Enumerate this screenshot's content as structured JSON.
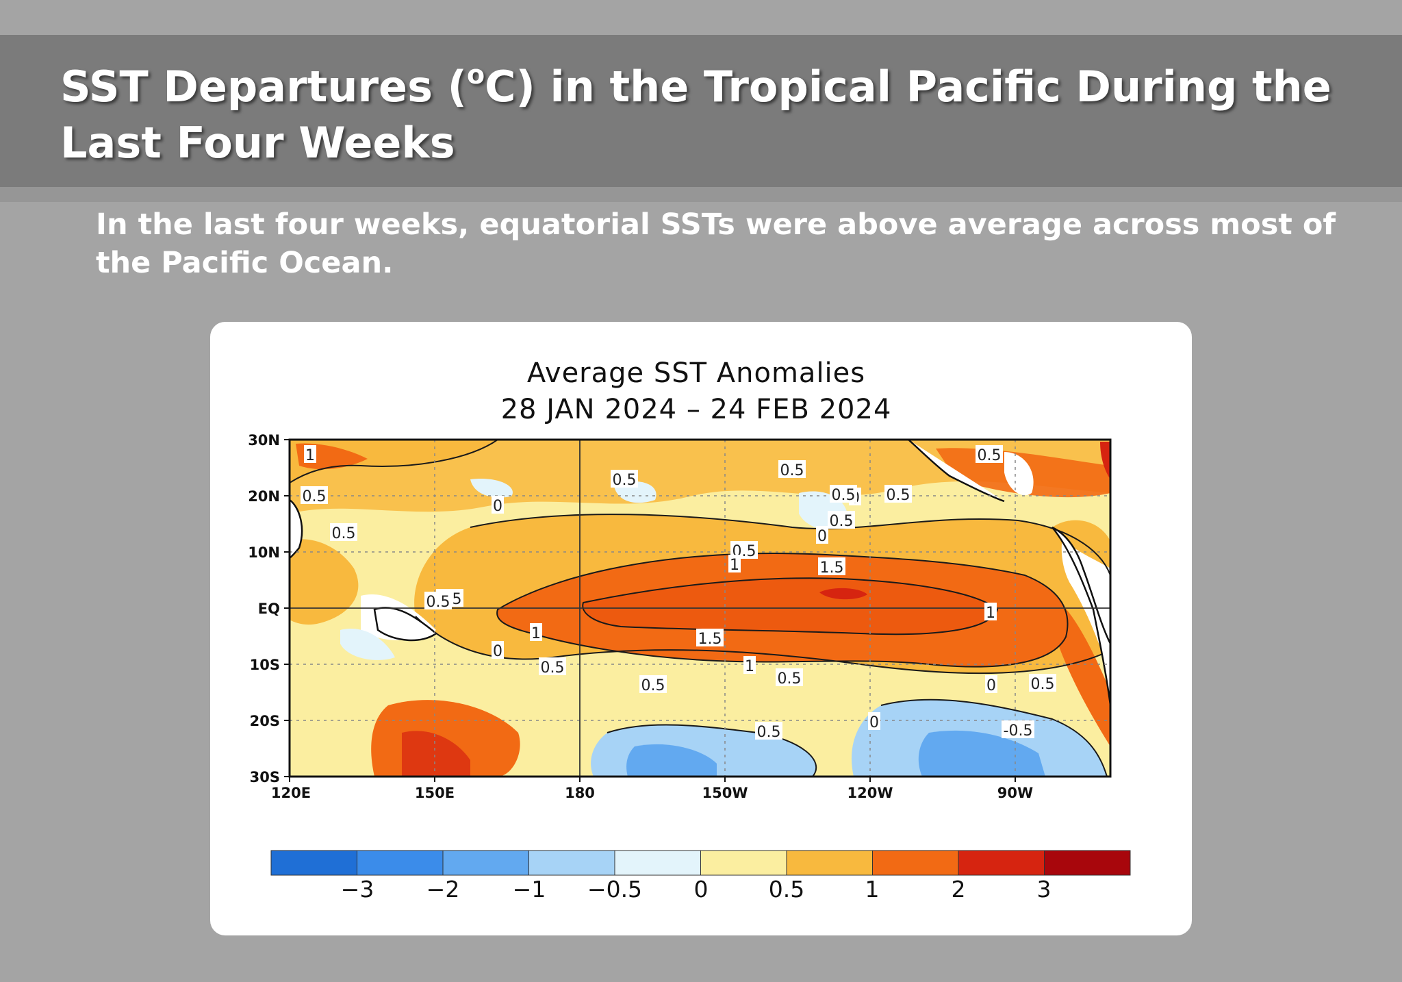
{
  "slide": {
    "title_main": "SST Departures (",
    "title_sup": "o",
    "title_rest": "C) in the Tropical Pacific During the Last Four Weeks",
    "subtitle": "In the last four weeks, equatorial SSTs were above average across most of the Pacific Ocean."
  },
  "map": {
    "title_line1": "Average SST Anomalies",
    "title_line2": "28 JAN 2024 – 24 FEB 2024",
    "lat_labels": [
      "30N",
      "20N",
      "10N",
      "EQ",
      "10S",
      "20S",
      "30S"
    ],
    "lon_labels": [
      "120E",
      "150E",
      "180",
      "150W",
      "120W",
      "90W"
    ],
    "contour_labels": [
      "1",
      "0.5",
      "0.5",
      "0",
      "0.5",
      "0.5",
      "0.5",
      "0.5",
      "0.5",
      "0",
      "0.5",
      "0.5",
      "0",
      "0.5",
      "1",
      "1.5",
      "1",
      "1.5",
      "0.5",
      "1",
      "0.5",
      "1",
      "0.5",
      "0.5",
      "0",
      "0.5",
      "0",
      "-0.5",
      "0.5",
      "0"
    ],
    "colorbar": {
      "tick_labels": [
        "−3",
        "−2",
        "−1",
        "−0.5",
        "0",
        "0.5",
        "1",
        "2",
        "3"
      ],
      "colors": [
        "#1f6fd6",
        "#3b8cea",
        "#62a9f0",
        "#a7d3f6",
        "#e3f4fb",
        "#fbeea0",
        "#f8b93e",
        "#f26a14",
        "#d62410",
        "#a8060c"
      ]
    }
  }
}
